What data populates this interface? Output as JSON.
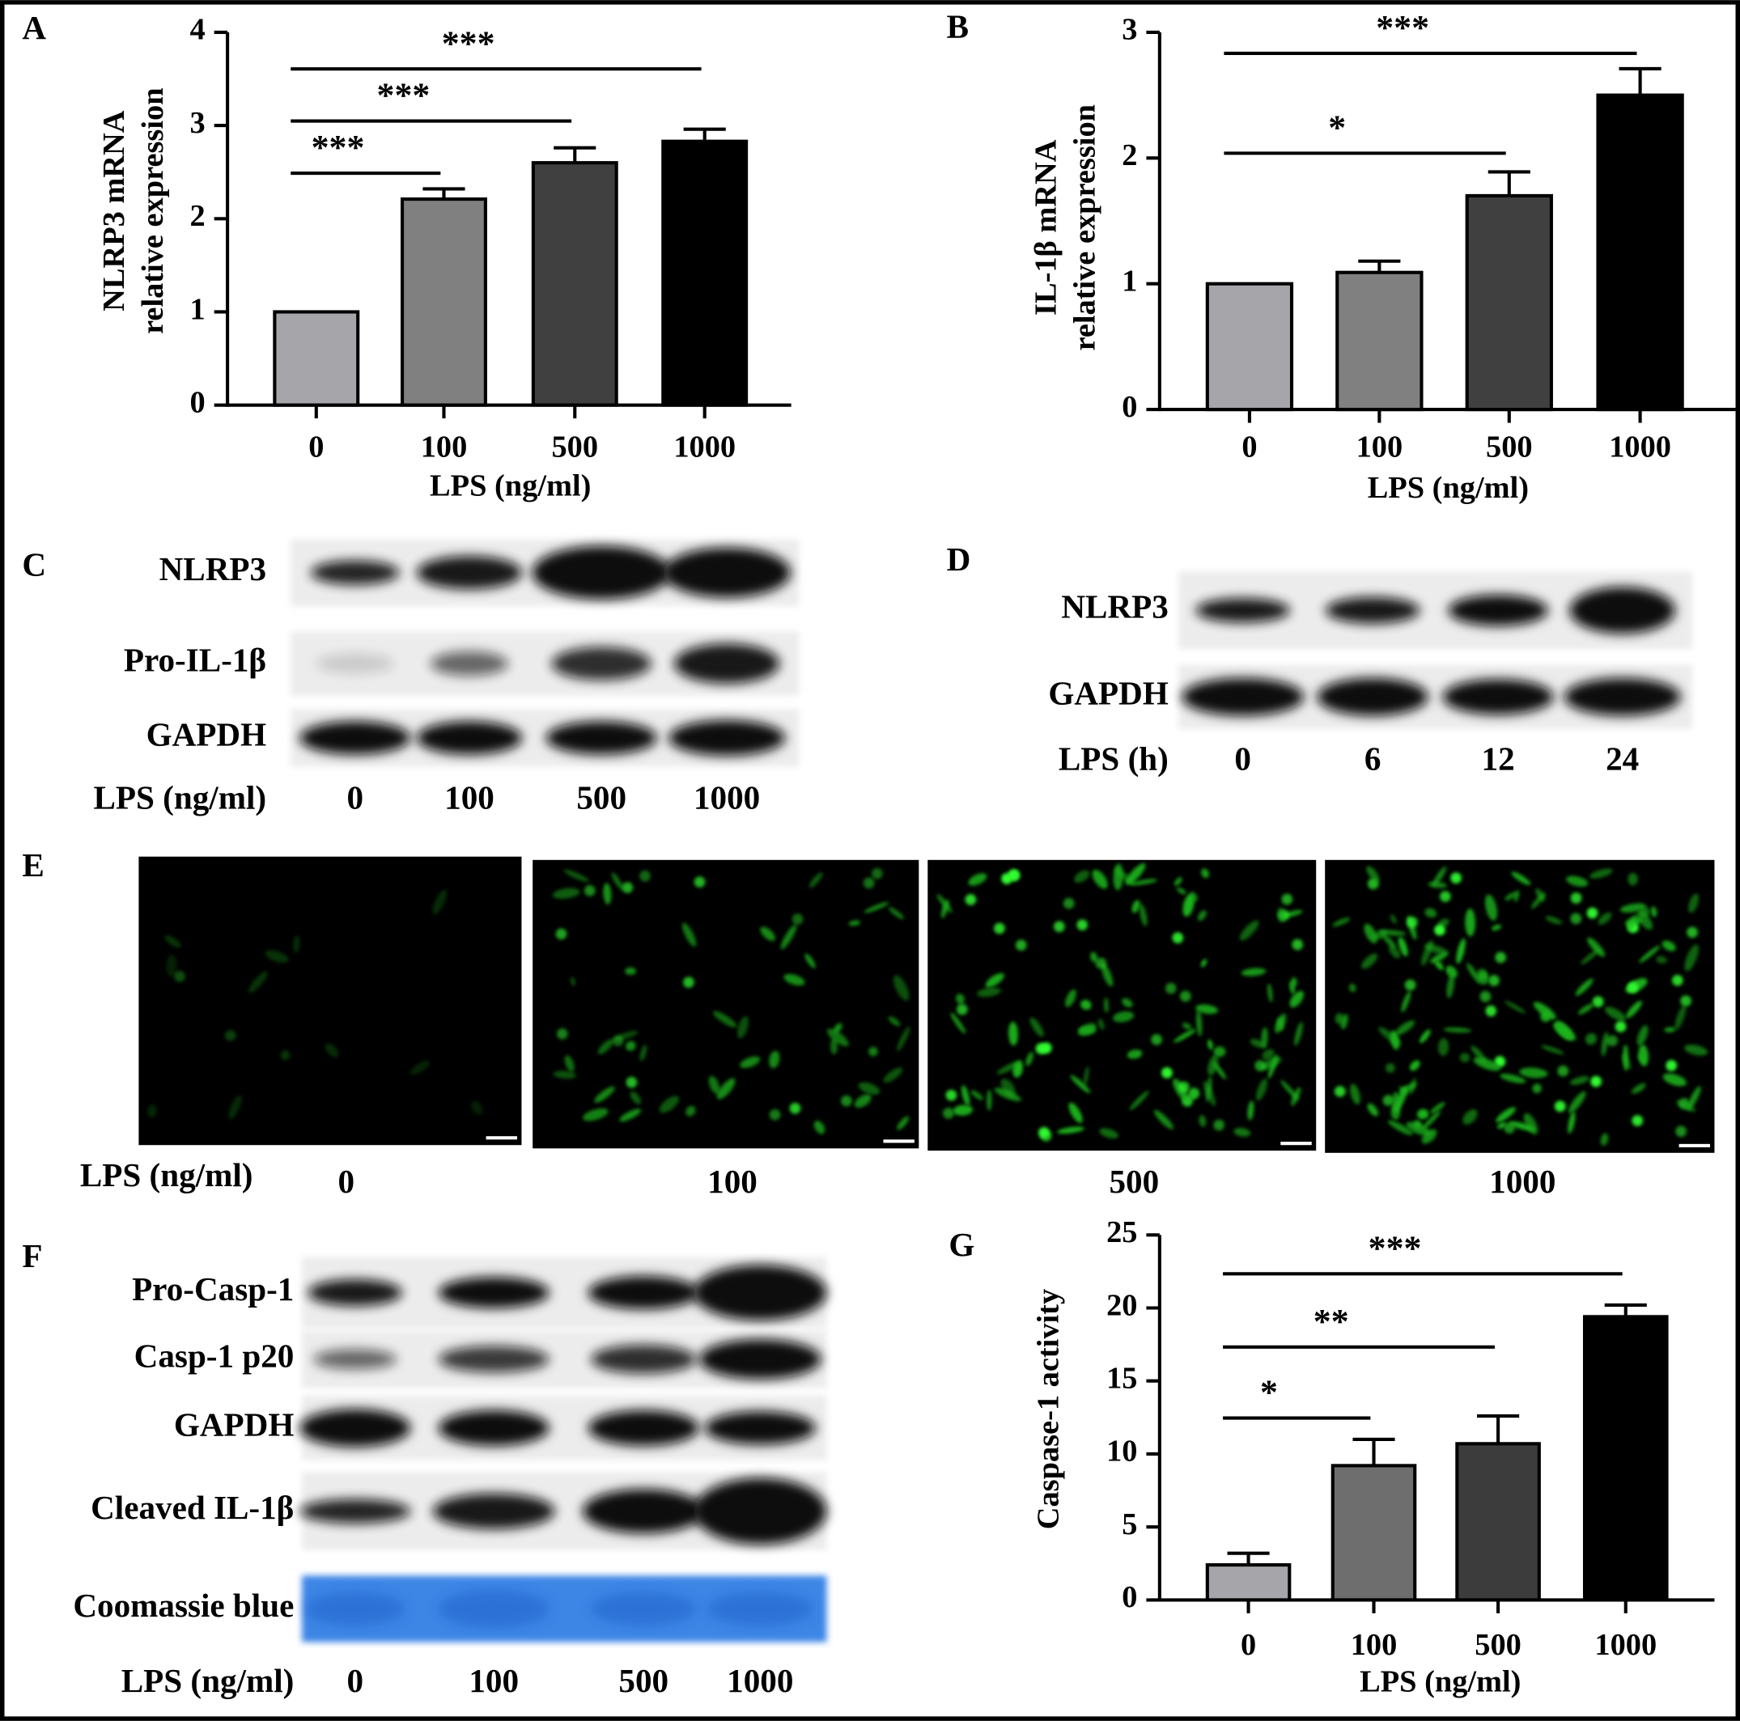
{
  "chart_data": [
    {
      "type": "bar",
      "panel": "A",
      "ylabel": [
        "NLRP3 mRNA",
        "relative expression"
      ],
      "xlabel": "LPS (ng/ml)",
      "categories": [
        "0",
        "100",
        "500",
        "1000"
      ],
      "values": [
        1,
        2.21,
        2.6,
        2.83
      ],
      "errors": [
        0,
        0.11,
        0.16,
        0.13
      ],
      "colors": [
        "#a6a6aa",
        "#808080",
        "#404040",
        "#000000"
      ],
      "ylim": [
        0,
        4
      ],
      "yticks": [
        0,
        1,
        2,
        3,
        4
      ],
      "significance": [
        {
          "pair": [
            0,
            1
          ],
          "label": "***"
        },
        {
          "pair": [
            0,
            2
          ],
          "label": "***"
        },
        {
          "pair": [
            0,
            3
          ],
          "label": "***"
        }
      ]
    },
    {
      "type": "bar",
      "panel": "B",
      "ylabel": [
        "IL-1β mRNA",
        "relative expression"
      ],
      "xlabel": "LPS (ng/ml)",
      "categories": [
        "0",
        "100",
        "500",
        "1000"
      ],
      "values": [
        1,
        1.09,
        1.7,
        2.5
      ],
      "errors": [
        0,
        0.09,
        0.19,
        0.21
      ],
      "colors": [
        "#a6a6aa",
        "#808080",
        "#404040",
        "#000000"
      ],
      "ylim": [
        0,
        3
      ],
      "yticks": [
        0,
        1,
        2,
        3
      ],
      "significance": [
        {
          "pair": [
            0,
            2
          ],
          "label": "*"
        },
        {
          "pair": [
            0,
            3
          ],
          "label": "***"
        }
      ]
    },
    {
      "type": "bar",
      "panel": "G",
      "ylabel": [
        "Caspase-1 activity"
      ],
      "xlabel": "LPS (ng/ml)",
      "categories": [
        "0",
        "100",
        "500",
        "1000"
      ],
      "values": [
        2.4,
        9.2,
        10.7,
        19.4
      ],
      "errors": [
        0.8,
        1.8,
        1.9,
        0.8
      ],
      "colors": [
        "#a6a6aa",
        "#6e6e6e",
        "#3c3c3c",
        "#000000"
      ],
      "ylim": [
        0,
        25
      ],
      "yticks": [
        0,
        5,
        10,
        15,
        20,
        25
      ],
      "significance": [
        {
          "pair": [
            0,
            1
          ],
          "label": "*"
        },
        {
          "pair": [
            0,
            2
          ],
          "label": "**"
        },
        {
          "pair": [
            0,
            3
          ],
          "label": "***"
        }
      ]
    }
  ],
  "blots": [
    {
      "panel": "C",
      "rows": [
        "NLRP3",
        "Pro-IL-1β",
        "GAPDH"
      ],
      "axis_label": "LPS (ng/ml)",
      "lanes": [
        "0",
        "100",
        "500",
        "1000"
      ]
    },
    {
      "panel": "D",
      "rows": [
        "NLRP3",
        "GAPDH"
      ],
      "axis_label": "LPS (h)",
      "lanes": [
        "0",
        "6",
        "12",
        "24"
      ]
    },
    {
      "panel": "F",
      "rows": [
        "Pro-Casp-1",
        "Casp-1 p20",
        "GAPDH",
        "Cleaved IL-1β",
        "Coomassie blue"
      ],
      "axis_label": "LPS (ng/ml)",
      "lanes": [
        "0",
        "100",
        "500",
        "1000"
      ]
    }
  ],
  "micrographs": {
    "panel": "E",
    "axis_label": "LPS (ng/ml)",
    "lanes": [
      "0",
      "100",
      "500",
      "1000"
    ]
  }
}
